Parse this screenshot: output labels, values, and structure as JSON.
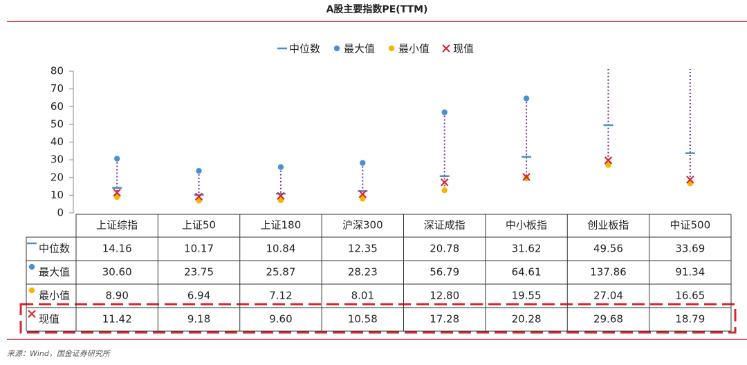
{
  "chart_data": {
    "type": "range",
    "title": "A股主要指数PE(TTM)",
    "source": "来源：Wind，国金证券研究所",
    "categories": [
      "上证综指",
      "上证50",
      "上证180",
      "沪深300",
      "深证成指",
      "中小板指",
      "创业板指",
      "中证500"
    ],
    "ylim": [
      0,
      80
    ],
    "yticks": [
      0,
      10,
      20,
      30,
      40,
      50,
      60,
      70,
      80
    ],
    "range_color": "#7030a0",
    "series": [
      {
        "name": "中位数",
        "color": "#4a8ccc",
        "marker": "dash",
        "values": [
          14.16,
          10.17,
          10.84,
          12.35,
          20.78,
          31.62,
          49.56,
          33.69
        ],
        "value_labels": [
          "14.16",
          "10.17",
          "10.84",
          "12.35",
          "20.78",
          "31.62",
          "49.56",
          "33.69"
        ]
      },
      {
        "name": "最大值",
        "color": "#4a8fd4",
        "marker": "dot",
        "values": [
          30.6,
          23.75,
          25.87,
          28.23,
          56.79,
          64.61,
          137.86,
          91.34
        ],
        "value_labels": [
          "30.60",
          "23.75",
          "25.87",
          "28.23",
          "56.79",
          "64.61",
          "137.86",
          "91.34"
        ]
      },
      {
        "name": "最小值",
        "color": "#f5b800",
        "marker": "dot",
        "values": [
          8.9,
          6.94,
          7.12,
          8.01,
          12.8,
          19.55,
          27.04,
          16.65
        ],
        "value_labels": [
          "8.90",
          "6.94",
          "7.12",
          "8.01",
          "12.80",
          "19.55",
          "27.04",
          "16.65"
        ]
      },
      {
        "name": "现值",
        "color": "#d9262c",
        "marker": "cross",
        "values": [
          11.42,
          9.18,
          9.6,
          10.58,
          17.28,
          20.28,
          29.68,
          18.79
        ],
        "value_labels": [
          "11.42",
          "9.18",
          "9.60",
          "10.58",
          "17.28",
          "20.28",
          "29.68",
          "18.79"
        ]
      }
    ]
  }
}
